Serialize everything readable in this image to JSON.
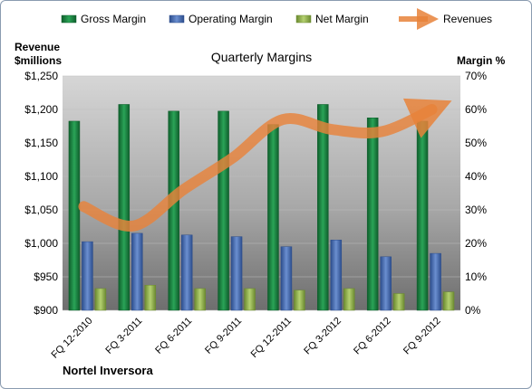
{
  "chart_data": {
    "type": "bar",
    "title": "Quarterly Margins",
    "company": "Nortel Inversora",
    "left_axis_label_line1": "Revenue",
    "left_axis_label_line2": "$millions",
    "right_axis_label": "Margin %",
    "categories": [
      "FQ 12-2010",
      "FQ 3-2011",
      "FQ 6-2011",
      "FQ 9-2011",
      "FQ 12-2011",
      "FQ 3-2012",
      "FQ 6-2012",
      "FQ 9-2012"
    ],
    "left_axis": {
      "min": 900,
      "max": 1250,
      "ticks": [
        "$900",
        "$950",
        "$1,000",
        "$1,050",
        "$1,100",
        "$1,150",
        "$1,200",
        "$1,250"
      ]
    },
    "right_axis": {
      "min": 0,
      "max": 70,
      "ticks": [
        "0%",
        "10%",
        "20%",
        "30%",
        "40%",
        "50%",
        "60%",
        "70%"
      ]
    },
    "legend_position": "top",
    "series": [
      {
        "name": "Gross Margin",
        "axis": "right",
        "color": "#1e8a45",
        "values": [
          56.5,
          61.5,
          59.5,
          59.5,
          55.5,
          61.5,
          57.5,
          56.5
        ]
      },
      {
        "name": "Operating Margin",
        "axis": "right",
        "color": "#4a6fb5",
        "values": [
          20.5,
          23,
          22.5,
          22,
          19,
          21,
          16,
          17
        ]
      },
      {
        "name": "Net Margin",
        "axis": "right",
        "color": "#8fb050",
        "values": [
          6.5,
          7.5,
          6.5,
          6.5,
          6,
          6.5,
          5,
          5.5
        ]
      },
      {
        "name": "Revenues",
        "axis": "left",
        "type": "line",
        "color": "#e8823a",
        "values": [
          1055,
          1026,
          1080,
          1128,
          1185,
          1170,
          1167,
          1200
        ]
      }
    ]
  }
}
